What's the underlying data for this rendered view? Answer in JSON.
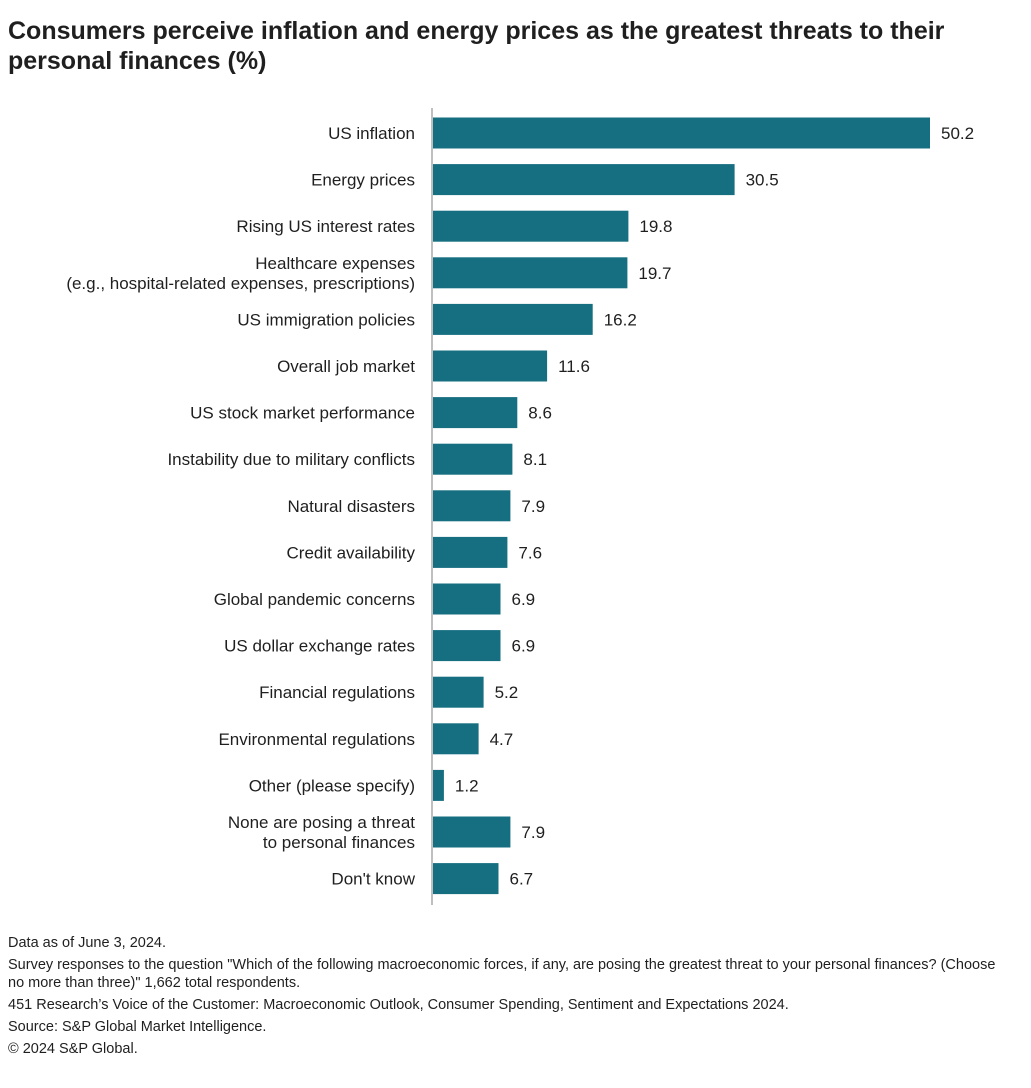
{
  "title": "Consumers perceive inflation and energy prices as the greatest threats to their personal finances (%)",
  "chart_data": {
    "type": "bar",
    "orientation": "horizontal",
    "categories": [
      [
        "US inflation"
      ],
      [
        "Energy prices"
      ],
      [
        "Rising US interest rates"
      ],
      [
        "Healthcare expenses",
        "(e.g., hospital-related expenses, prescriptions)"
      ],
      [
        "US immigration policies"
      ],
      [
        "Overall job market"
      ],
      [
        "US stock market performance"
      ],
      [
        "Instability due to military conflicts"
      ],
      [
        "Natural disasters"
      ],
      [
        "Credit availability"
      ],
      [
        "Global pandemic concerns"
      ],
      [
        "US dollar exchange rates"
      ],
      [
        "Financial regulations"
      ],
      [
        "Environmental regulations"
      ],
      [
        "Other (please specify)"
      ],
      [
        "None are posing a threat",
        "to personal finances"
      ],
      [
        "Don't know"
      ]
    ],
    "values": [
      50.2,
      30.5,
      19.8,
      19.7,
      16.2,
      11.6,
      8.6,
      8.1,
      7.9,
      7.6,
      6.9,
      6.9,
      5.2,
      4.7,
      1.2,
      7.9,
      6.7
    ],
    "value_labels": [
      "50.2",
      "30.5",
      "19.8",
      "19.7",
      "16.2",
      "11.6",
      "8.6",
      "8.1",
      "7.9",
      "7.6",
      "6.9",
      "6.9",
      "5.2",
      "4.7",
      "1.2",
      "7.9",
      "6.7"
    ],
    "xlim": [
      0,
      50.2
    ],
    "bar_color": "#166e81",
    "grid": false,
    "legend": "none",
    "title": "Consumers perceive inflation and energy prices as the greatest threats to their personal finances (%)",
    "xlabel": "",
    "ylabel": ""
  },
  "footnotes": {
    "date": "Data as of June 3, 2024.",
    "survey": "Survey responses to the question \"Which of the following macroeconomic forces, if any, are posing the greatest threat to your personal finances? (Choose no more than three)\" 1,662 total respondents.",
    "report": "451 Research’s Voice of the Customer: Macroeconomic Outlook, Consumer Spending, Sentiment and Expectations 2024.",
    "source": "Source: S&P Global Market Intelligence.",
    "copyright": "© 2024 S&P Global."
  }
}
